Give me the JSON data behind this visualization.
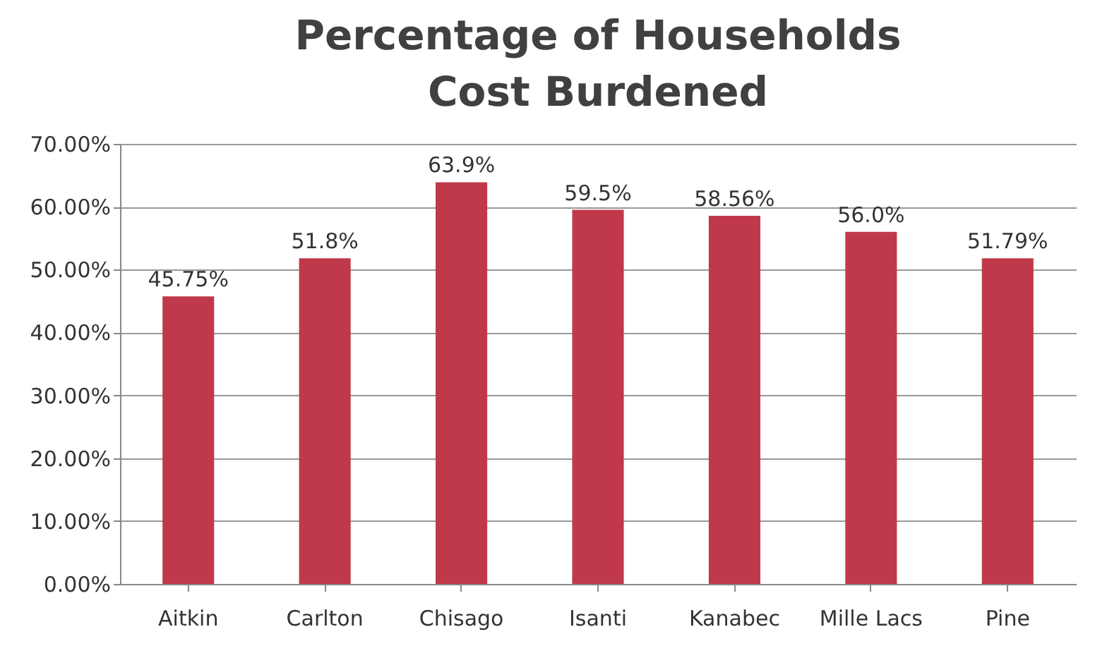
{
  "chart_data": {
    "type": "bar",
    "title": "Percentage of Households Cost Burdened",
    "categories": [
      "Aitkin",
      "Carlton",
      "Chisago",
      "Isanti",
      "Kanabec",
      "Mille Lacs",
      "Pine"
    ],
    "values": [
      45.75,
      51.8,
      63.9,
      59.5,
      58.56,
      56.0,
      51.79
    ],
    "value_labels": [
      "45.75%",
      "51.8%",
      "63.9%",
      "59.5%",
      "58.56%",
      "56.0%",
      "51.79%"
    ],
    "color": "#c0394a",
    "ylim": [
      0,
      70
    ],
    "yticks": [
      {
        "value": 0,
        "label": "0.00%"
      },
      {
        "value": 10,
        "label": "10.00%"
      },
      {
        "value": 20,
        "label": "20.00%"
      },
      {
        "value": 30,
        "label": "30.00%"
      },
      {
        "value": 40,
        "label": "40.00%"
      },
      {
        "value": 50,
        "label": "50.00%"
      },
      {
        "value": 60,
        "label": "60.00%"
      },
      {
        "value": 70,
        "label": "70.00%"
      }
    ],
    "grid": "y"
  }
}
